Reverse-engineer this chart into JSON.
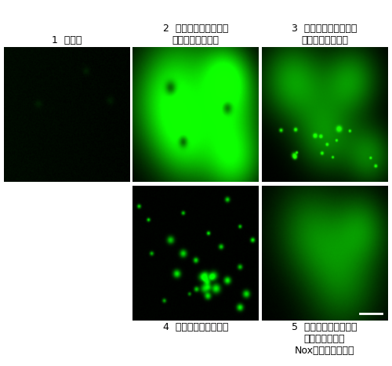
{
  "bg_color": "#ffffff",
  "label1": "1  肝細胞",
  "label2_line1": "2  肝細胞＋カンジダ菌",
  "label2_line2": "（アルビカンス）",
  "label3_line1": "3  肝細胞＋カンジダ菌",
  "label3_line2": "（グラブラータ）",
  "label4": "4  肝細胞＋パン酵母菌",
  "label5_line1": "5  肝細胞＋カンジダ菌",
  "label5_line2": "（グラブラータ",
  "label5_line3": "Nox遺伝子破壊株）",
  "font_size_label": 9
}
